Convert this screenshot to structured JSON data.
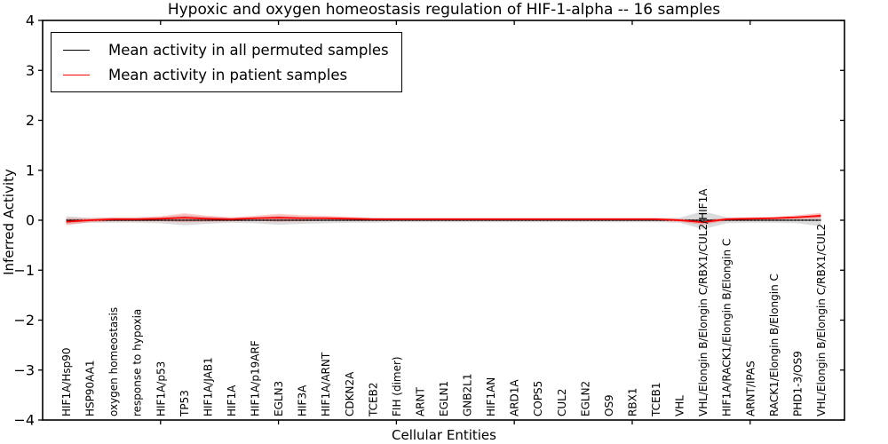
{
  "title": "Hypoxic and oxygen homeostasis regulation of HIF-1-alpha -- 16 samples",
  "legend": {
    "entries": [
      {
        "label": "Mean activity in all permuted samples",
        "color": "#000000"
      },
      {
        "label": "Mean activity in patient samples",
        "color": "#ff0000"
      }
    ]
  },
  "chart_data": {
    "type": "line",
    "title": "Hypoxic and oxygen homeostasis regulation of HIF-1-alpha -- 16 samples",
    "xlabel": "Cellular Entities",
    "ylabel": "Inferred Activity",
    "ylim": [
      -4,
      4
    ],
    "yticks": [
      -4,
      -3,
      -2,
      -1,
      0,
      1,
      2,
      3,
      4
    ],
    "xtick_units": [
      5,
      10,
      15,
      20,
      25,
      30
    ],
    "grid": false,
    "legend_position": "upper left",
    "reference_line": {
      "y": 0,
      "style": "dotted"
    },
    "categories": [
      "HIF1A/Hsp90",
      "HSP90AA1",
      "oxygen homeostasis",
      "response to hypoxia",
      "HIF1A/p53",
      "TP53",
      "HIF1A/JAB1",
      "HIF1A",
      "HIF1A/p19ARF",
      "EGLN3",
      "HIF3A",
      "HIF1A/ARNT",
      "CDKN2A",
      "TCEB2",
      "FIH (dimer)",
      "ARNT",
      "EGLN1",
      "GNB2L1",
      "HIF1AN",
      "ARD1A",
      "COPS5",
      "CUL2",
      "EGLN2",
      "OS9",
      "RBX1",
      "TCEB1",
      "VHL",
      "VHL/Elongin B/Elongin C/RBX1/CUL2/HIF1A",
      "HIF1A/RACK1/Elongin B/Elongin C",
      "ARNT/IPAS",
      "RACK1/Elongin B/Elongin C",
      "PHD1-3/OS9",
      "VHL/Elongin B/Elongin C/RBX1/CUL2"
    ],
    "series": [
      {
        "name": "Mean activity in all permuted samples",
        "color": "#000000",
        "style": "solid-with-dotted-overlay",
        "values": [
          0,
          0,
          0,
          0,
          0,
          0,
          0,
          0,
          0,
          0,
          0,
          0,
          0,
          0,
          0,
          0,
          0,
          0,
          0,
          0,
          0,
          0,
          0,
          0,
          0,
          0,
          0,
          0,
          0,
          0,
          0,
          0,
          0
        ],
        "band": [
          0.08,
          0.05,
          0.05,
          0.05,
          0.06,
          0.1,
          0.07,
          0.05,
          0.06,
          0.09,
          0.07,
          0.06,
          0.05,
          0.05,
          0.04,
          0.04,
          0.04,
          0.04,
          0.04,
          0.04,
          0.04,
          0.04,
          0.04,
          0.04,
          0.04,
          0.04,
          0.05,
          0.18,
          0.06,
          0.05,
          0.05,
          0.06,
          0.12
        ]
      },
      {
        "name": "Mean activity in patient samples",
        "color": "#ff0000",
        "style": "solid",
        "values": [
          -0.03,
          0.0,
          0.02,
          0.02,
          0.03,
          0.05,
          0.03,
          0.02,
          0.04,
          0.05,
          0.04,
          0.04,
          0.03,
          0.02,
          0.02,
          0.02,
          0.02,
          0.02,
          0.02,
          0.02,
          0.02,
          0.02,
          0.02,
          0.02,
          0.02,
          0.02,
          0.0,
          -0.04,
          0.02,
          0.03,
          0.04,
          0.06,
          0.09
        ],
        "band": [
          0.07,
          0.04,
          0.04,
          0.04,
          0.05,
          0.09,
          0.06,
          0.04,
          0.05,
          0.08,
          0.06,
          0.05,
          0.04,
          0.03,
          0.03,
          0.03,
          0.03,
          0.03,
          0.03,
          0.03,
          0.03,
          0.03,
          0.03,
          0.03,
          0.03,
          0.03,
          0.03,
          0.05,
          0.03,
          0.03,
          0.03,
          0.04,
          0.06
        ]
      }
    ]
  }
}
